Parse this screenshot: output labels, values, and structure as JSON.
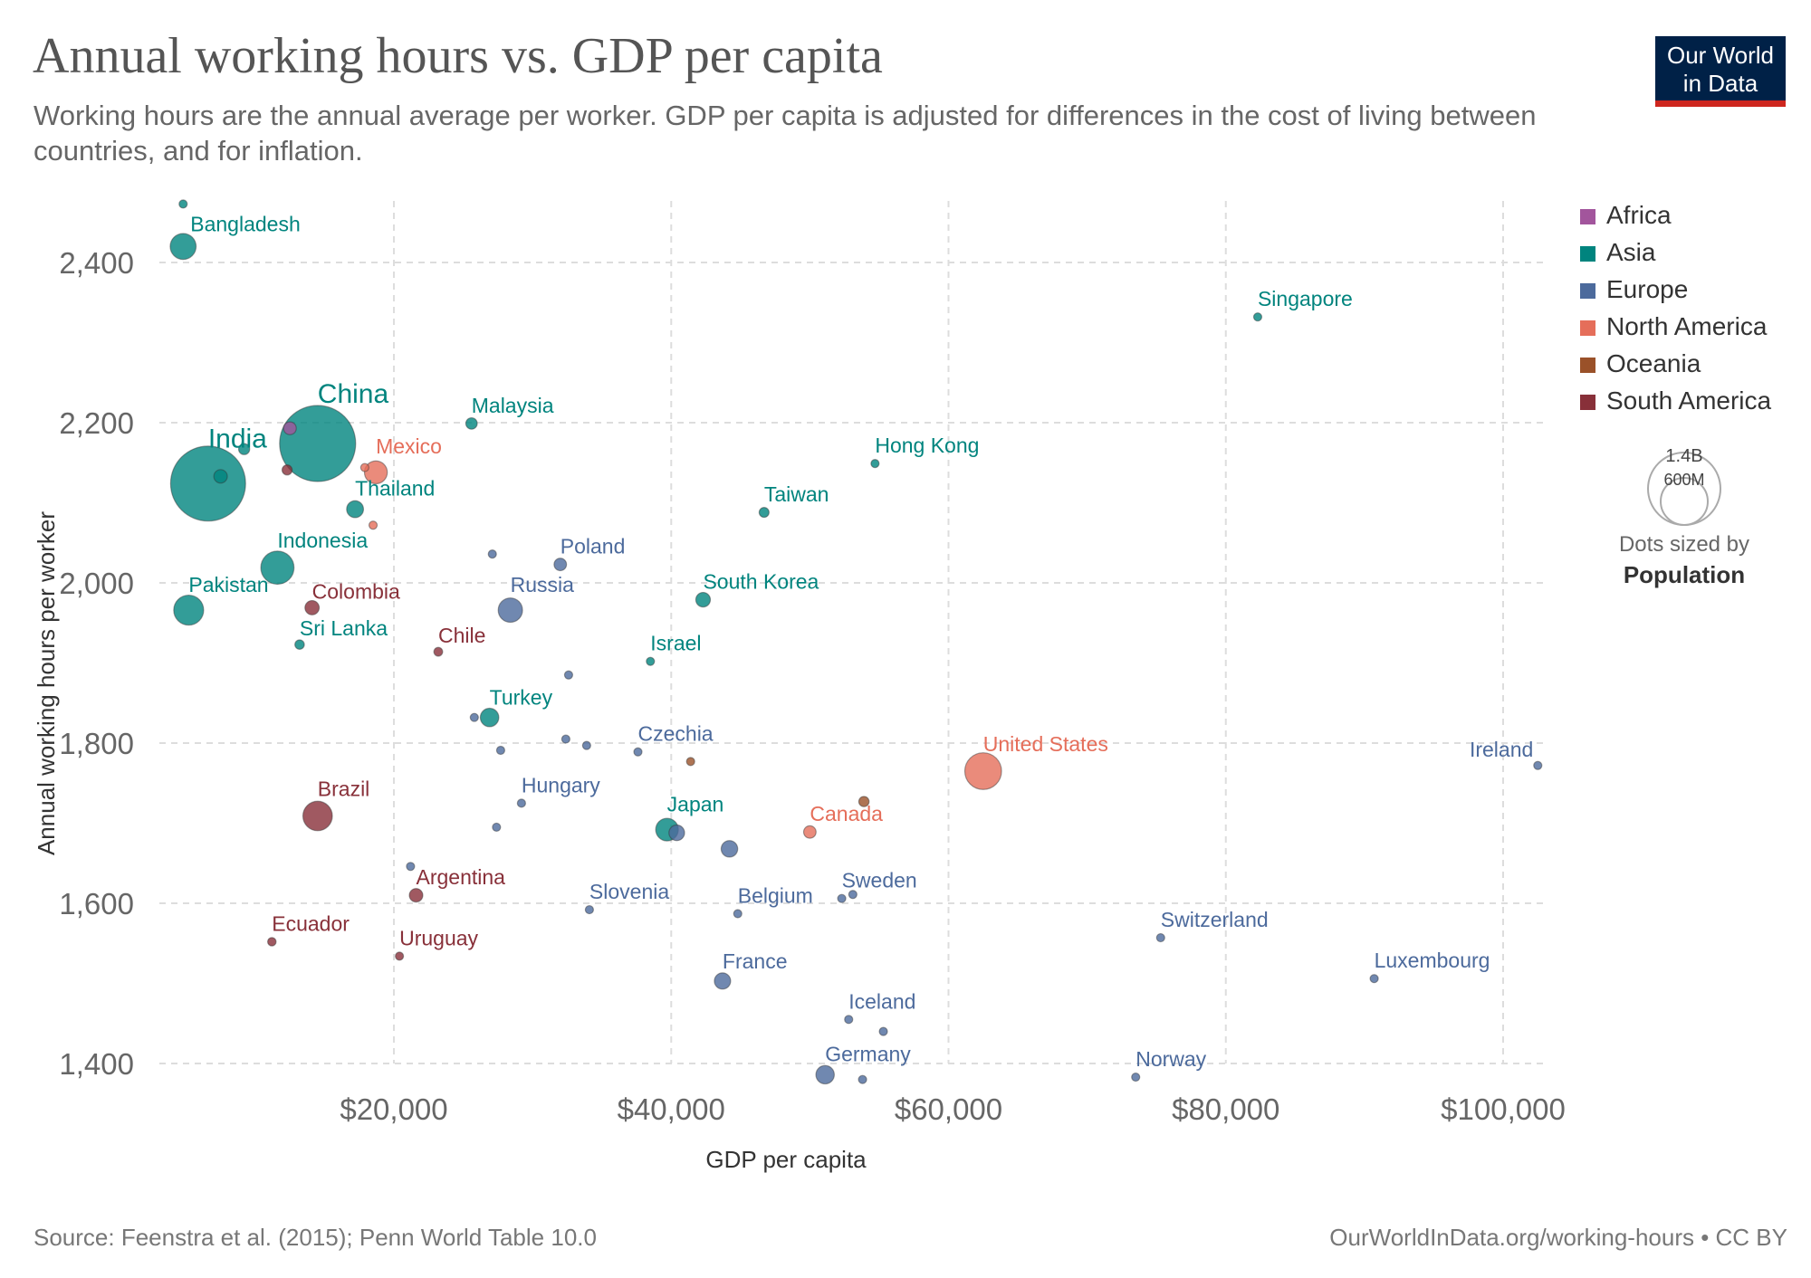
{
  "header": {
    "title": "Annual working hours vs. GDP per capita",
    "subtitle": "Working hours are the annual average per worker. GDP per capita is adjusted for differences in the cost of living between countries, and for inflation."
  },
  "logo": {
    "line1": "Our World",
    "line2": "in Data"
  },
  "footer": {
    "source": "Source: Feenstra et al. (2015); Penn World Table 10.0",
    "url": "OurWorldInData.org/working-hours • CC BY"
  },
  "legend": {
    "items": [
      {
        "label": "Africa",
        "color": "#a2559c"
      },
      {
        "label": "Asia",
        "color": "#00847e"
      },
      {
        "label": "Europe",
        "color": "#4c6a9c"
      },
      {
        "label": "North America",
        "color": "#e56e5a"
      },
      {
        "label": "Oceania",
        "color": "#9a5129"
      },
      {
        "label": "South America",
        "color": "#883039"
      }
    ],
    "size_values": [
      "1.4B",
      "600M"
    ],
    "size_caption": "Dots sized by",
    "size_variable": "Population"
  },
  "chart_data": {
    "type": "scatter",
    "xlabel": "GDP per capita",
    "ylabel": "Annual working hours per worker",
    "xlim": [
      0,
      105000
    ],
    "ylim": [
      1370,
      2480
    ],
    "x_ticks": [
      20000,
      40000,
      60000,
      80000,
      100000
    ],
    "x_tick_labels": [
      "$20,000",
      "$40,000",
      "$60,000",
      "$80,000",
      "$100,000"
    ],
    "y_ticks": [
      1400,
      1600,
      1800,
      2000,
      2200,
      2400
    ],
    "y_tick_labels": [
      "1,400",
      "1,600",
      "1,800",
      "2,000",
      "2,200",
      "2,400"
    ],
    "grid": true,
    "legend_position": "right",
    "points": [
      {
        "label": "Bangladesh",
        "continent": "Asia",
        "gdp": 4800,
        "hours": 2420,
        "pop_m": 165
      },
      {
        "label": "",
        "continent": "Asia",
        "gdp": 4800,
        "hours": 2473,
        "pop_m": 10
      },
      {
        "label": "India",
        "continent": "Asia",
        "gdp": 6600,
        "hours": 2124,
        "pop_m": 1380
      },
      {
        "label": "",
        "continent": "Asia",
        "gdp": 7500,
        "hours": 2133,
        "pop_m": 45
      },
      {
        "label": "",
        "continent": "Asia",
        "gdp": 9200,
        "hours": 2167,
        "pop_m": 30
      },
      {
        "label": "China",
        "continent": "Asia",
        "gdp": 14500,
        "hours": 2174,
        "pop_m": 1420
      },
      {
        "label": "",
        "continent": "Africa",
        "gdp": 12500,
        "hours": 2193,
        "pop_m": 40
      },
      {
        "label": "",
        "continent": "South America",
        "gdp": 12300,
        "hours": 2141,
        "pop_m": 25
      },
      {
        "label": "Mexico",
        "continent": "North America",
        "gdp": 18700,
        "hours": 2138,
        "pop_m": 128
      },
      {
        "label": "",
        "continent": "North America",
        "gdp": 17900,
        "hours": 2144,
        "pop_m": 12
      },
      {
        "label": "",
        "continent": "North America",
        "gdp": 18500,
        "hours": 2072,
        "pop_m": 5
      },
      {
        "label": "Malaysia",
        "continent": "Asia",
        "gdp": 25600,
        "hours": 2199,
        "pop_m": 32
      },
      {
        "label": "Thailand",
        "continent": "Asia",
        "gdp": 17200,
        "hours": 2092,
        "pop_m": 70
      },
      {
        "label": "Indonesia",
        "continent": "Asia",
        "gdp": 11600,
        "hours": 2019,
        "pop_m": 270
      },
      {
        "label": "Pakistan",
        "continent": "Asia",
        "gdp": 5200,
        "hours": 1966,
        "pop_m": 220
      },
      {
        "label": "Sri Lanka",
        "continent": "Asia",
        "gdp": 13200,
        "hours": 1923,
        "pop_m": 22
      },
      {
        "label": "Colombia",
        "continent": "South America",
        "gdp": 14100,
        "hours": 1969,
        "pop_m": 50
      },
      {
        "label": "Chile",
        "continent": "South America",
        "gdp": 23200,
        "hours": 1914,
        "pop_m": 19
      },
      {
        "label": "Poland",
        "continent": "Europe",
        "gdp": 32000,
        "hours": 2023,
        "pop_m": 38
      },
      {
        "label": "",
        "continent": "Europe",
        "gdp": 27100,
        "hours": 2036,
        "pop_m": 10
      },
      {
        "label": "Russia",
        "continent": "Europe",
        "gdp": 28400,
        "hours": 1966,
        "pop_m": 145
      },
      {
        "label": "Hong Kong",
        "continent": "Asia",
        "gdp": 54700,
        "hours": 2149,
        "pop_m": 7.5
      },
      {
        "label": "Taiwan",
        "continent": "Asia",
        "gdp": 46700,
        "hours": 2088,
        "pop_m": 24
      },
      {
        "label": "South Korea",
        "continent": "Asia",
        "gdp": 42300,
        "hours": 1979,
        "pop_m": 52
      },
      {
        "label": "Israel",
        "continent": "Asia",
        "gdp": 38500,
        "hours": 1902,
        "pop_m": 9
      },
      {
        "label": "Singapore",
        "continent": "Asia",
        "gdp": 82300,
        "hours": 2332,
        "pop_m": 6
      },
      {
        "label": "Turkey",
        "continent": "Asia",
        "gdp": 26900,
        "hours": 1832,
        "pop_m": 84
      },
      {
        "label": "",
        "continent": "Europe",
        "gdp": 25800,
        "hours": 1832,
        "pop_m": 10
      },
      {
        "label": "",
        "continent": "Europe",
        "gdp": 32600,
        "hours": 1885,
        "pop_m": 10
      },
      {
        "label": "",
        "continent": "Europe",
        "gdp": 32400,
        "hours": 1805,
        "pop_m": 10
      },
      {
        "label": "",
        "continent": "Europe",
        "gdp": 33900,
        "hours": 1797,
        "pop_m": 10
      },
      {
        "label": "",
        "continent": "Europe",
        "gdp": 27700,
        "hours": 1791,
        "pop_m": 10
      },
      {
        "label": "Czechia",
        "continent": "Europe",
        "gdp": 37600,
        "hours": 1789,
        "pop_m": 10.7
      },
      {
        "label": "",
        "continent": "Oceania",
        "gdp": 41400,
        "hours": 1777,
        "pop_m": 5
      },
      {
        "label": "United States",
        "continent": "North America",
        "gdp": 62500,
        "hours": 1765,
        "pop_m": 331
      },
      {
        "label": "Ireland",
        "continent": "Europe",
        "gdp": 102500,
        "hours": 1772,
        "pop_m": 5
      },
      {
        "label": "Brazil",
        "continent": "South America",
        "gdp": 14500,
        "hours": 1709,
        "pop_m": 213
      },
      {
        "label": "Hungary",
        "continent": "Europe",
        "gdp": 29200,
        "hours": 1725,
        "pop_m": 10
      },
      {
        "label": "",
        "continent": "Europe",
        "gdp": 27400,
        "hours": 1695,
        "pop_m": 9
      },
      {
        "label": "Japan",
        "continent": "Asia",
        "gdp": 39700,
        "hours": 1692,
        "pop_m": 126
      },
      {
        "label": "",
        "continent": "Europe",
        "gdp": 40400,
        "hours": 1688,
        "pop_m": 60
      },
      {
        "label": "",
        "continent": "Europe",
        "gdp": 44200,
        "hours": 1668,
        "pop_m": 67
      },
      {
        "label": "Canada",
        "continent": "North America",
        "gdp": 50000,
        "hours": 1689,
        "pop_m": 38
      },
      {
        "label": "",
        "continent": "Oceania",
        "gdp": 53900,
        "hours": 1727,
        "pop_m": 26
      },
      {
        "label": "",
        "continent": "Europe",
        "gdp": 21200,
        "hours": 1646,
        "pop_m": 10
      },
      {
        "label": "Argentina",
        "continent": "South America",
        "gdp": 21600,
        "hours": 1610,
        "pop_m": 45
      },
      {
        "label": "Slovenia",
        "continent": "Europe",
        "gdp": 34100,
        "hours": 1592,
        "pop_m": 2
      },
      {
        "label": "Belgium",
        "continent": "Europe",
        "gdp": 44800,
        "hours": 1587,
        "pop_m": 11.5
      },
      {
        "label": "Sweden",
        "continent": "Europe",
        "gdp": 52300,
        "hours": 1606,
        "pop_m": 10.4
      },
      {
        "label": "",
        "continent": "Europe",
        "gdp": 53100,
        "hours": 1611,
        "pop_m": 5.8
      },
      {
        "label": "Ecuador",
        "continent": "South America",
        "gdp": 11200,
        "hours": 1552,
        "pop_m": 17.6
      },
      {
        "label": "Uruguay",
        "continent": "South America",
        "gdp": 20400,
        "hours": 1534,
        "pop_m": 3.5
      },
      {
        "label": "Switzerland",
        "continent": "Europe",
        "gdp": 75300,
        "hours": 1557,
        "pop_m": 8.6
      },
      {
        "label": "Luxembourg",
        "continent": "Europe",
        "gdp": 90700,
        "hours": 1506,
        "pop_m": 0.6
      },
      {
        "label": "France",
        "continent": "Europe",
        "gdp": 43700,
        "hours": 1503,
        "pop_m": 65
      },
      {
        "label": "Iceland",
        "continent": "Europe",
        "gdp": 52800,
        "hours": 1455,
        "pop_m": 0.37
      },
      {
        "label": "",
        "continent": "Europe",
        "gdp": 55300,
        "hours": 1440,
        "pop_m": 10
      },
      {
        "label": "Germany",
        "continent": "Europe",
        "gdp": 51100,
        "hours": 1386,
        "pop_m": 83
      },
      {
        "label": "",
        "continent": "Europe",
        "gdp": 53800,
        "hours": 1380,
        "pop_m": 5
      },
      {
        "label": "Norway",
        "continent": "Europe",
        "gdp": 73500,
        "hours": 1383,
        "pop_m": 5.4
      }
    ]
  }
}
